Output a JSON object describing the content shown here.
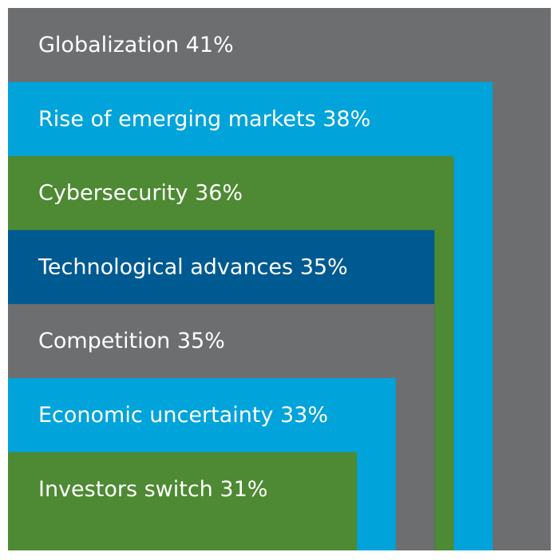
{
  "chart_data": {
    "type": "nested-bar",
    "categories": [
      "Globalization",
      "Rise of emerging markets",
      "Cybersecurity",
      "Technological advances",
      "Competition",
      "Economic uncertainty",
      "Investors switch"
    ],
    "values": [
      41,
      38,
      36,
      35,
      35,
      33,
      31
    ],
    "value_labels": [
      "41%",
      "38%",
      "36%",
      "35%",
      "35%",
      "33%",
      "31%"
    ],
    "colors": [
      "#6d6e70",
      "#00a3da",
      "#4d8a33",
      "#005a92",
      "#6d6e70",
      "#00a3da",
      "#4d8a33"
    ],
    "xlim": [
      13,
      41
    ]
  }
}
